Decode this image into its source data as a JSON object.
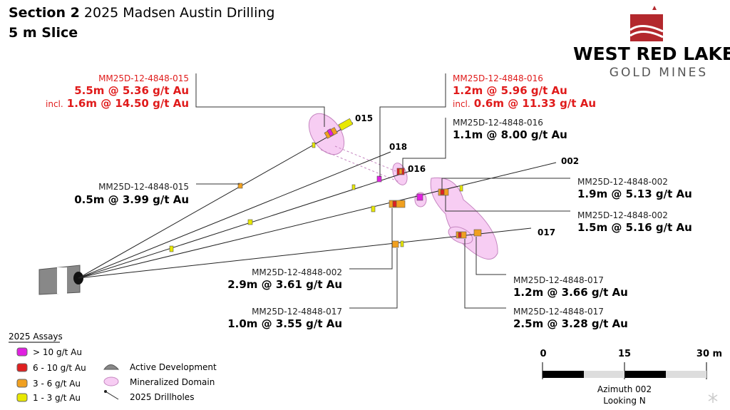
{
  "header": {
    "title_bold": "Section 2",
    "title_rest": "2025 Madsen Austin Drilling",
    "subtitle": "5 m Slice"
  },
  "logo": {
    "line1": "WEST RED LAKE",
    "line2": "GOLD MINES"
  },
  "drillhole_labels": [
    "015",
    "018",
    "016",
    "002",
    "017"
  ],
  "callouts": [
    {
      "hole": "MM25D-12-4848-015",
      "result": "5.5m @ 5.36 g/t Au",
      "incl_label": "incl.",
      "incl": "1.6m @ 14.50 g/t Au"
    },
    {
      "hole": "MM25D-12-4848-016",
      "result": "1.2m @ 5.96 g/t Au",
      "incl_label": "incl.",
      "incl": "0.6m @ 11.33 g/t Au"
    },
    {
      "hole": "MM25D-12-4848-016",
      "result": "1.1m @ 8.00 g/t Au"
    },
    {
      "hole": "MM25D-12-4848-015",
      "result": "0.5m @ 3.99 g/t Au"
    },
    {
      "hole": "MM25D-12-4848-002",
      "result": "1.9m @ 5.13 g/t Au"
    },
    {
      "hole": "MM25D-12-4848-002",
      "result": "1.5m @ 5.16 g/t Au"
    },
    {
      "hole": "MM25D-12-4848-002",
      "result": "2.9m @ 3.61 g/t Au"
    },
    {
      "hole": "MM25D-12-4848-017",
      "result": "1.2m @ 3.66 g/t Au"
    },
    {
      "hole": "MM25D-12-4848-017",
      "result": "1.0m @ 3.55 g/t Au"
    },
    {
      "hole": "MM25D-12-4848-017",
      "result": "2.5m @ 3.28 g/t Au"
    }
  ],
  "legend": {
    "title": "2025 Assays",
    "assays": [
      "> 10 g/t Au",
      "6 - 10 g/t Au",
      "3 - 6 g/t Au",
      "1 - 3 g/t Au"
    ],
    "features": [
      "Active Development",
      "Mineralized Domain",
      "2025 Drillholes"
    ]
  },
  "scale_bar": {
    "labels": [
      "0",
      "15",
      "30 m"
    ],
    "caption": [
      "Azimuth 002",
      "Looking N"
    ]
  }
}
